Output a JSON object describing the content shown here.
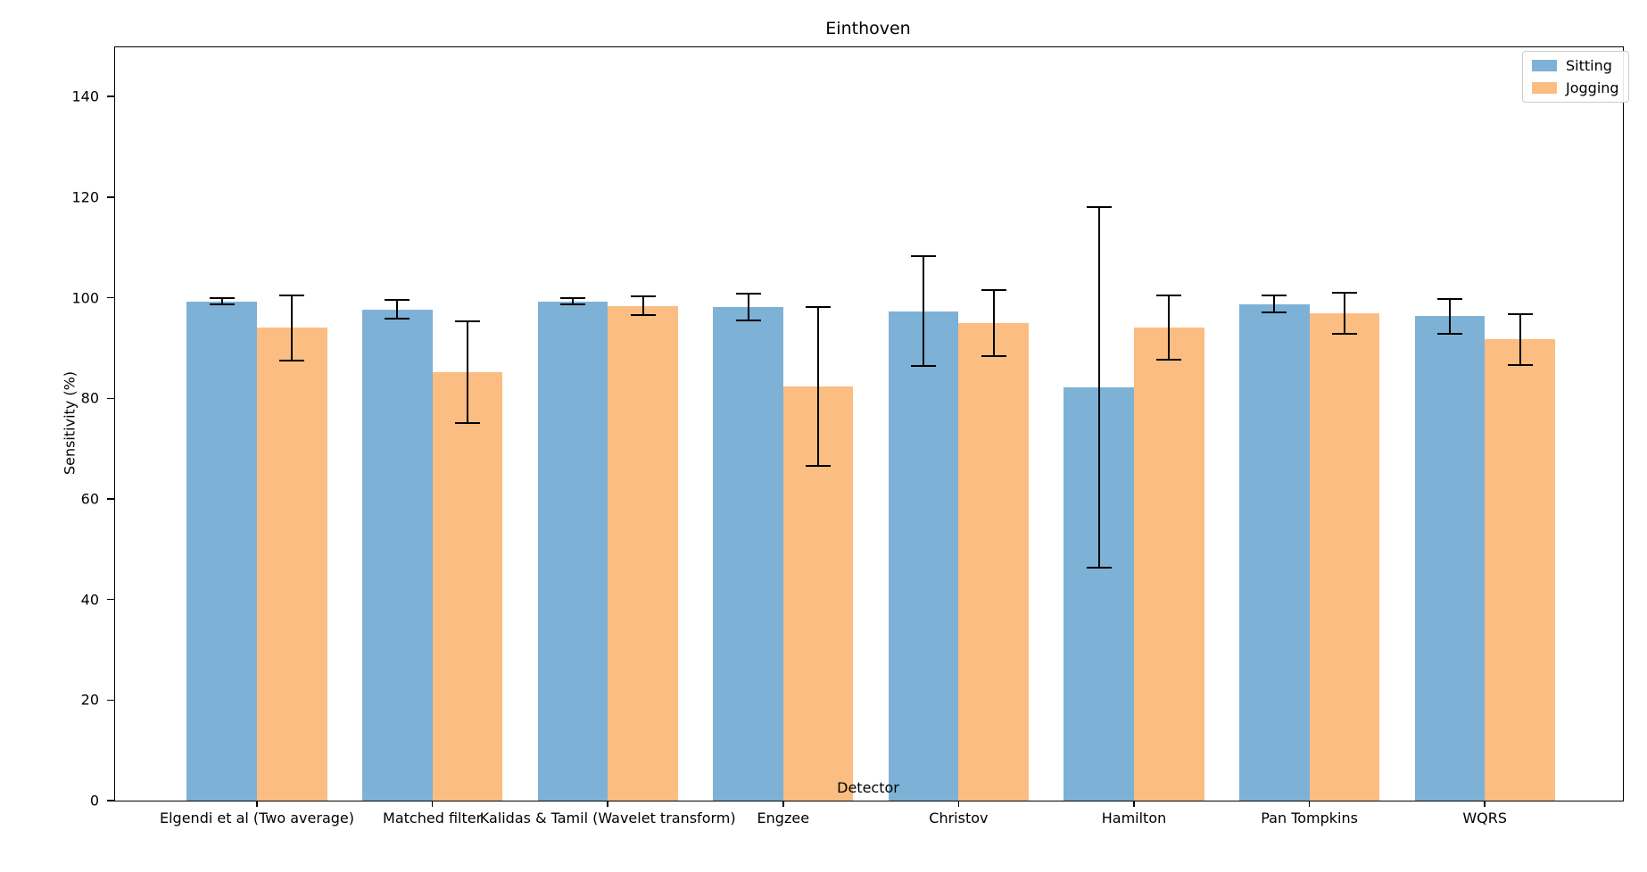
{
  "chart_data": {
    "type": "bar",
    "title": "Einthoven",
    "xlabel": "Detector",
    "ylabel": "Sensitivity (%)",
    "categories": [
      "Elgendi et al (Two average)",
      "Matched filter",
      "Kalidas & Tamil (Wavelet transform)",
      "Engzee",
      "Christov",
      "Hamilton",
      "Pan Tompkins",
      "WQRS"
    ],
    "series": [
      {
        "name": "Sitting",
        "color": "#7EB1D6",
        "values": [
          99.3,
          97.7,
          99.3,
          98.1,
          97.3,
          82.2,
          98.7,
          96.3
        ],
        "errors": [
          0.6,
          1.9,
          0.7,
          2.7,
          10.9,
          35.8,
          1.7,
          3.5
        ]
      },
      {
        "name": "Jogging",
        "color": "#FBBD82",
        "values": [
          94.0,
          85.2,
          98.4,
          82.4,
          95.0,
          94.0,
          96.9,
          91.7
        ],
        "errors": [
          6.5,
          10.1,
          1.8,
          15.8,
          6.6,
          6.4,
          4.1,
          5.1
        ]
      }
    ],
    "yticks": [
      0,
      20,
      40,
      60,
      80,
      100,
      120,
      140
    ],
    "ylim": [
      0,
      149.8
    ],
    "grid": false,
    "legend_position": "upper right",
    "error_bar_color": "#000000"
  }
}
